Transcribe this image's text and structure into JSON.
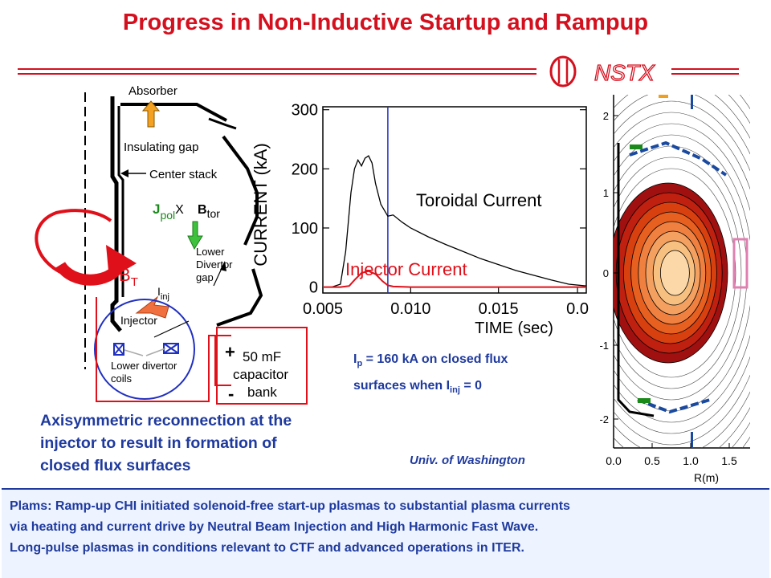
{
  "slide": {
    "title": "Progress in Non-Inductive Startup and Rampup",
    "logo_text": "NSTX",
    "colors": {
      "title_red": "#d4101e",
      "text_blue": "#1f3a9e",
      "circuit_red": "#e0101a"
    }
  },
  "schematic": {
    "absorber": "Absorber",
    "insulating_gap": "Insulating gap",
    "center_stack": "Center stack",
    "jpol_j": "J",
    "jpol_sub": "pol",
    "jpol_x": "X",
    "btor_b": "B",
    "btor_sub": "tor",
    "bt_b": "B",
    "bt_sub": "T",
    "lower_divertor_gap": [
      "Lower",
      "Divertor",
      "gap"
    ],
    "iinj_i": "I",
    "iinj_sub": "inj",
    "injector": "Injector",
    "lower_divertor_coils": [
      "Lower divertor",
      "coils"
    ],
    "plus": "+",
    "minus": "-",
    "capacitor": [
      "50 mF",
      "capacitor",
      "bank"
    ]
  },
  "plot": {
    "ylabel": "CURRENT (kA)",
    "xlabel": "TIME (sec)",
    "y_ticks": [
      "300",
      "200",
      "100",
      "0"
    ],
    "x_ticks": [
      "0.005",
      "0.010",
      "0.015",
      "0.0"
    ],
    "label_toroidal": "Toroidal Current",
    "label_injector": "Injector Current",
    "chart_data": {
      "type": "line",
      "xlim": [
        0.005,
        0.02
      ],
      "ylim": [
        -10,
        305
      ],
      "vline_x": 0.0087,
      "series": [
        {
          "name": "Toroidal Current",
          "color": "#000000",
          "x": [
            0.005,
            0.0055,
            0.006,
            0.0063,
            0.0066,
            0.0068,
            0.007,
            0.0072,
            0.0074,
            0.0076,
            0.0078,
            0.008,
            0.0083,
            0.0087,
            0.009,
            0.0095,
            0.01,
            0.011,
            0.012,
            0.013,
            0.014,
            0.015,
            0.016,
            0.017,
            0.018,
            0.019,
            0.02
          ],
          "y": [
            0,
            0,
            5,
            60,
            160,
            200,
            215,
            205,
            218,
            222,
            210,
            175,
            140,
            120,
            122,
            110,
            100,
            85,
            72,
            60,
            48,
            38,
            28,
            20,
            12,
            5,
            2
          ]
        },
        {
          "name": "Injector Current",
          "color": "#e0101a",
          "x": [
            0.005,
            0.006,
            0.0065,
            0.0068,
            0.0072,
            0.0076,
            0.008,
            0.0084,
            0.0087,
            0.009,
            0.01,
            0.012,
            0.015,
            0.02
          ],
          "y": [
            0,
            0,
            2,
            12,
            24,
            27,
            22,
            10,
            3,
            1,
            0,
            0,
            0,
            0
          ]
        }
      ]
    }
  },
  "equilibrium": {
    "y_ticks": [
      "2",
      "1",
      "0",
      "-1",
      "-2"
    ],
    "x_ticks": [
      "0.0",
      "0.5",
      "1.0",
      "1.5"
    ],
    "xlabel": "R(m)"
  },
  "captions": {
    "left": [
      "Axisymmetric reconnection at the",
      "injector to result in  formation of",
      "closed flux surfaces"
    ],
    "ip_1": "I",
    "ip_sub": "p",
    "ip_2": " = 160 kA on closed flux",
    "ip_3": "surfaces when I",
    "ip_sub2": "inj",
    "ip_4": " = 0",
    "credit": "Univ. of Washington"
  },
  "bottom": {
    "lines": [
      "Plams: Ramp-up CHI initiated solenoid-free start-up plasmas to substantial plasma currents",
      "via heating and current drive by Neutral Beam Injection and High Harmonic Fast Wave.",
      "Long-pulse plasmas in conditions relevant to CTF and advanced operations in ITER."
    ]
  }
}
